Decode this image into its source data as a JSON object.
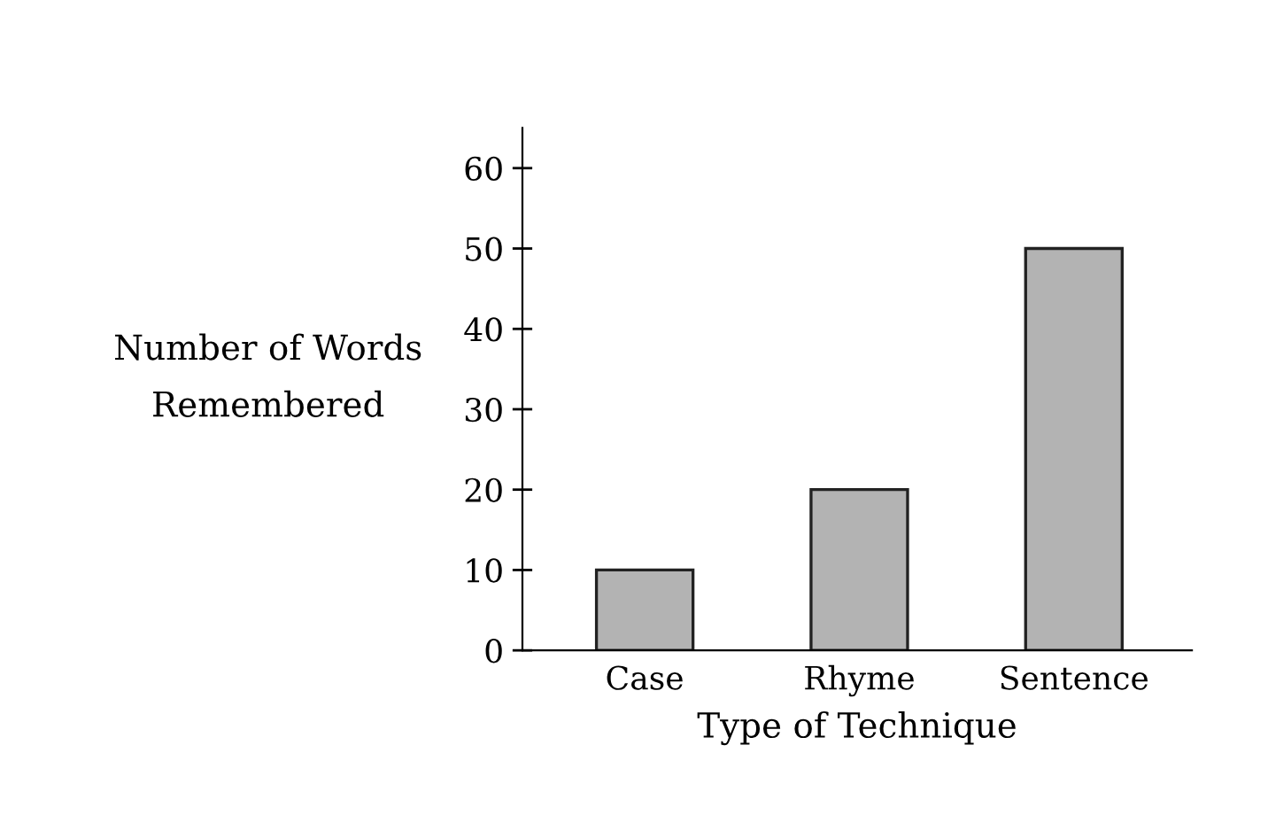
{
  "chart_data": {
    "type": "bar",
    "xlabel": "Type of Technique",
    "ylabel": "Number of Words\nRemembered",
    "categories": [
      "Case",
      "Rhyme",
      "Sentence"
    ],
    "values": [
      10,
      20,
      50
    ],
    "color": "#b3b3b3",
    "ylim": [
      0,
      65
    ],
    "yticks": [
      0,
      10,
      20,
      30,
      40,
      50,
      60
    ],
    "grid": false
  }
}
